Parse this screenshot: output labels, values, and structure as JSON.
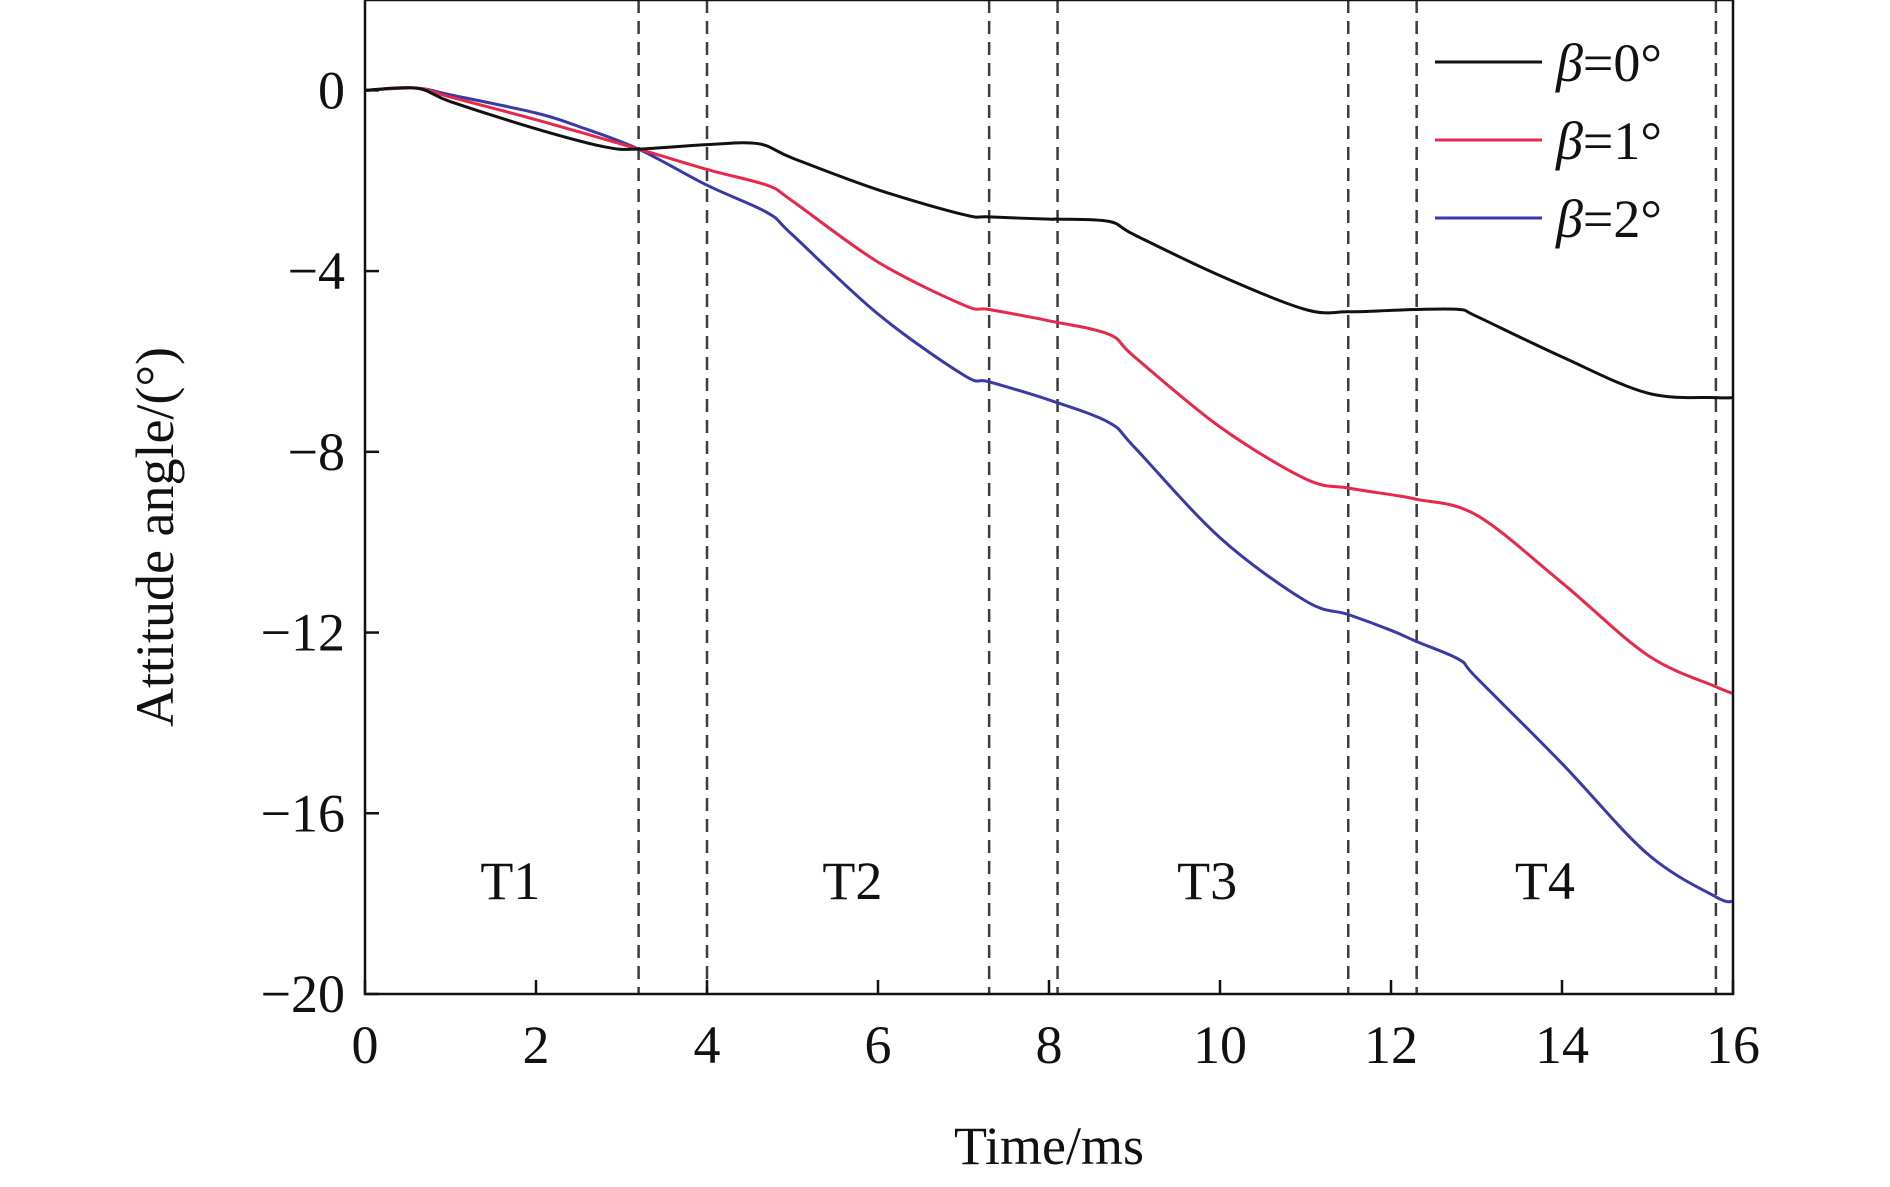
{
  "chart_data": {
    "type": "line",
    "xlabel": "Time/ms",
    "ylabel": "Attitude angle/(°)",
    "xlim": [
      0,
      16
    ],
    "ylim": [
      -20,
      2
    ],
    "xticks": [
      0,
      2,
      4,
      6,
      8,
      10,
      12,
      14,
      16
    ],
    "xtick_labels": [
      "0",
      "2",
      "4",
      "6",
      "8",
      "10",
      "12",
      "14",
      "16"
    ],
    "yticks": [
      0,
      -4,
      -8,
      -12,
      -16,
      -20
    ],
    "ytick_labels": [
      "0",
      "−4",
      "−8",
      "−12",
      "−16",
      "−20"
    ],
    "grid": false,
    "legend_position": "top-right",
    "legend_symbol": "β",
    "series": [
      {
        "name": "β=0°",
        "legend_value": "=0°",
        "color": "#111111",
        "x": [
          0,
          0.6,
          1,
          2,
          2.8,
          3.2,
          4,
          4.6,
          5,
          6,
          7,
          7.3,
          8,
          8.1,
          8.7,
          9,
          10,
          11,
          11.5,
          12,
          12.3,
          12.8,
          13,
          14,
          15,
          15.8,
          16
        ],
        "y": [
          0,
          0.05,
          -0.25,
          -0.85,
          -1.25,
          -1.3,
          -1.2,
          -1.18,
          -1.5,
          -2.2,
          -2.75,
          -2.8,
          -2.85,
          -2.85,
          -2.9,
          -3.2,
          -4.1,
          -4.85,
          -4.9,
          -4.87,
          -4.85,
          -4.85,
          -5.0,
          -5.9,
          -6.7,
          -6.8,
          -6.8
        ]
      },
      {
        "name": "β=1°",
        "legend_value": "=1°",
        "color": "#e8284a",
        "x": [
          0,
          0.6,
          1,
          2,
          3.2,
          4,
          4.7,
          5,
          6,
          7,
          7.3,
          8,
          8.7,
          9,
          10,
          11,
          11.5,
          12,
          12.3,
          13,
          14,
          15,
          15.8,
          16
        ],
        "y": [
          0,
          0.05,
          -0.15,
          -0.65,
          -1.3,
          -1.75,
          -2.1,
          -2.45,
          -3.8,
          -4.75,
          -4.85,
          -5.1,
          -5.4,
          -5.9,
          -7.45,
          -8.6,
          -8.8,
          -8.95,
          -9.05,
          -9.4,
          -10.9,
          -12.5,
          -13.2,
          -13.35
        ]
      },
      {
        "name": "β=2°",
        "legend_value": "=2°",
        "color": "#3a3aa6",
        "x": [
          0,
          0.6,
          1,
          2,
          2.5,
          3.2,
          4,
          4.7,
          5,
          6,
          7,
          7.3,
          8,
          8.7,
          9,
          10,
          11,
          11.5,
          12,
          12.3,
          12.8,
          13,
          14,
          15,
          15.8,
          16
        ],
        "y": [
          0,
          0.05,
          -0.1,
          -0.5,
          -0.8,
          -1.3,
          -2.1,
          -2.7,
          -3.2,
          -4.95,
          -6.3,
          -6.45,
          -6.85,
          -7.35,
          -7.9,
          -9.9,
          -11.3,
          -11.6,
          -11.95,
          -12.2,
          -12.6,
          -13.0,
          -14.9,
          -16.9,
          -17.85,
          -17.95
        ]
      }
    ],
    "vertical_markers": [
      3.2,
      4.0,
      7.3,
      8.1,
      11.5,
      12.3,
      15.8
    ],
    "annotations": [
      {
        "text": "T1",
        "x": 1.7,
        "y": -17.5
      },
      {
        "text": "T2",
        "x": 5.7,
        "y": -17.5
      },
      {
        "text": "T3",
        "x": 9.85,
        "y": -17.5
      },
      {
        "text": "T4",
        "x": 13.8,
        "y": -17.5
      }
    ]
  },
  "colors": {
    "axis": "#111111",
    "marker_dash": "#3c3c3c",
    "marker_dash_blue": "#3a3aa6"
  }
}
